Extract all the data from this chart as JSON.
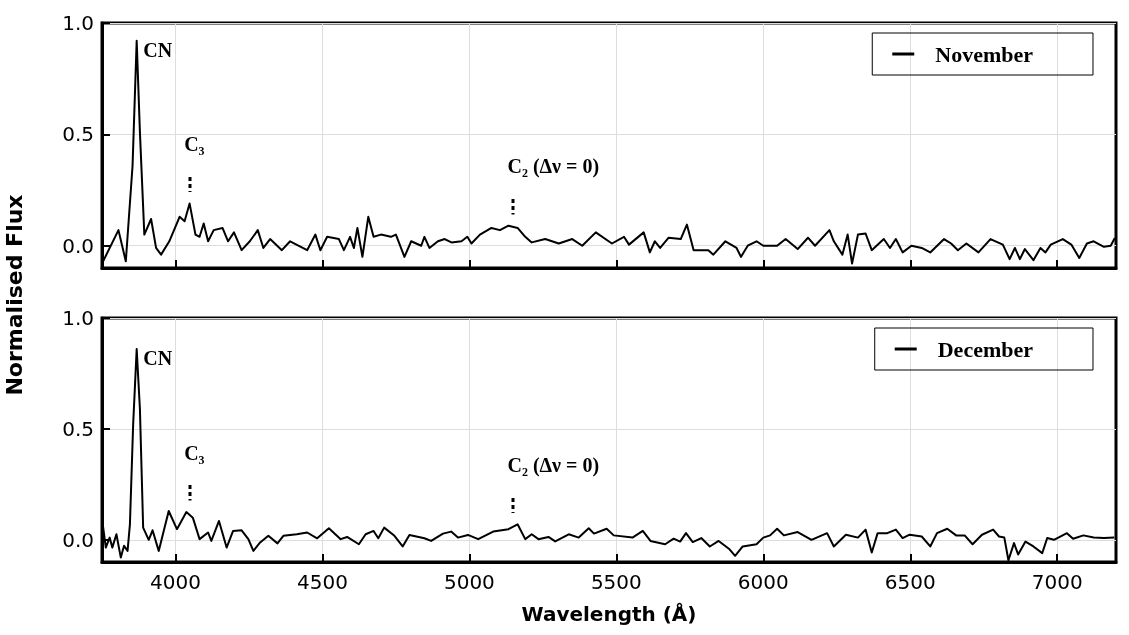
{
  "chart_data": [
    {
      "type": "line",
      "ylabel": "Normalised Flux",
      "xlim": [
        3750,
        7200
      ],
      "xticks": [
        4000,
        4500,
        5000,
        5500,
        6000,
        6500,
        7000
      ],
      "ylim": [
        -0.1,
        1.0
      ],
      "yticks": [
        {
          "value": 0,
          "label": "0.0"
        },
        {
          "value": 0.5,
          "label": "0.5"
        },
        {
          "value": 1,
          "label": "1.0"
        }
      ],
      "tick_labels": "y",
      "grid": true,
      "legend": "top right",
      "marker": "none",
      "line_style": "solid",
      "annotations": [
        {
          "text": "CN",
          "x": 3870,
          "y": 0.92
        },
        {
          "text": "C₃",
          "x": 4050,
          "y": 0.19
        },
        {
          "text": "C₂ (Δν = 0)",
          "x": 5150,
          "y": 0.09
        }
      ],
      "series": [
        {
          "name": "November",
          "color": "#000000",
          "x": [
            3750,
            3770,
            3806,
            3817,
            3831,
            3842,
            3854,
            3868,
            3879,
            3894,
            3917,
            3934,
            3951,
            3966,
            3979,
            4014,
            4031,
            4048,
            4068,
            4082,
            4096,
            4111,
            4130,
            4160,
            4179,
            4199,
            4225,
            4253,
            4280,
            4299,
            4322,
            4362,
            4390,
            4448,
            4476,
            4493,
            4516,
            4556,
            4573,
            4594,
            4607,
            4619,
            4636,
            4656,
            4674,
            4699,
            4733,
            4750,
            4779,
            4802,
            4836,
            4847,
            4864,
            4893,
            4916,
            4939,
            4973,
            4993,
            5007,
            5036,
            5075,
            5104,
            5133,
            5164,
            5190,
            5212,
            5258,
            5304,
            5350,
            5384,
            5430,
            5485,
            5526,
            5543,
            5593,
            5614,
            5631,
            5649,
            5678,
            5719,
            5740,
            5763,
            5813,
            5830,
            5871,
            5892,
            5909,
            5924,
            5947,
            5977,
            6000,
            6047,
            6076,
            6117,
            6152,
            6176,
            6225,
            6240,
            6269,
            6287,
            6302,
            6322,
            6348,
            6369,
            6410,
            6431,
            6451,
            6474,
            6504,
            6539,
            6568,
            6615,
            6639,
            6662,
            6691,
            6732,
            6773,
            6815,
            6838,
            6856,
            6873,
            6890,
            6919,
            6943,
            6960,
            6978,
            7019,
            7048,
            7075,
            7101,
            7124,
            7159,
            7182,
            7196
          ],
          "values": [
            -0.08,
            null,
            0.07,
            null,
            -0.07,
            null,
            0.36,
            0.92,
            0.51,
            0.05,
            0.12,
            -0.01,
            -0.04,
            null,
            0.02,
            0.13,
            0.11,
            0.19,
            0.05,
            0.04,
            0.1,
            0.02,
            0.07,
            0.08,
            0.02,
            0.06,
            -0.02,
            0.02,
            0.07,
            -0.01,
            0.03,
            -0.02,
            0.02,
            -0.02,
            0.05,
            -0.02,
            0.04,
            0.03,
            -0.02,
            0.04,
            -0.01,
            0.08,
            -0.05,
            0.13,
            0.04,
            0.05,
            0.04,
            0.05,
            -0.05,
            0.02,
            0,
            0.04,
            -0.01,
            0.02,
            0.03,
            0.015,
            0.02,
            0.04,
            0.01,
            0.05,
            0.08,
            0.07,
            0.09,
            0.08,
            0.04,
            0.015,
            0.03,
            0.01,
            0.03,
            0,
            0.06,
            0.01,
            0.04,
            0.005,
            0.06,
            -0.03,
            0.02,
            -0.01,
            0.036,
            0.03,
            0.095,
            -0.02,
            -0.02,
            -0.04,
            0.02,
            null,
            -0.01,
            -0.05,
            0,
            0.02,
            0,
            0,
            0.03,
            -0.015,
            0.036,
            0,
            0.07,
            0.02,
            -0.04,
            0.05,
            -0.08,
            0.05,
            0.055,
            -0.02,
            0.03,
            -0.01,
            0.03,
            -0.03,
            0,
            -0.01,
            -0.03,
            0.03,
            0.01,
            -0.02,
            0.01,
            -0.03,
            0.03,
            0.005,
            -0.06,
            -0.01,
            -0.06,
            -0.015,
            -0.065,
            -0.01,
            -0.03,
            0.005,
            0.03,
            0.005,
            -0.055,
            0.01,
            0.02,
            -0.005,
            0,
            0.035
          ]
        }
      ]
    },
    {
      "type": "line",
      "xlabel": "Wavelength (Å)",
      "xlim": [
        3750,
        7200
      ],
      "xticks": [
        4000,
        4500,
        5000,
        5500,
        6000,
        6500,
        7000
      ],
      "ylim": [
        -0.1,
        1.0
      ],
      "yticks": [
        {
          "value": 0,
          "label": "0.0"
        },
        {
          "value": 0.5,
          "label": "0.5"
        },
        {
          "value": 1,
          "label": "1.0"
        }
      ],
      "grid": true,
      "legend": "top right",
      "marker": "none",
      "line_style": "solid",
      "annotations": [
        {
          "text": "CN",
          "x": 3870,
          "y": 0.86
        },
        {
          "text": "C₃",
          "x": 4050,
          "y": 0.125
        },
        {
          "text": "C₂ (Δν = 0)",
          "x": 5150,
          "y": 0.07
        }
      ],
      "series": [
        {
          "name": "December",
          "color": "#000000",
          "x": [
            3751,
            3763,
            3776,
            3785,
            3799,
            3814,
            3825,
            3837,
            3845,
            3856,
            3868,
            3879,
            3890,
            3909,
            3922,
            3943,
            3977,
            4005,
            4037,
            4059,
            4082,
            4111,
            4122,
            4148,
            4174,
            4196,
            4225,
            4248,
            4265,
            4288,
            4316,
            4347,
            4367,
            4413,
            4448,
            4482,
            4522,
            4562,
            4584,
            4624,
            4647,
            4674,
            4690,
            4710,
            4745,
            4773,
            4796,
            4847,
            4870,
            4910,
            4938,
            4961,
            4995,
            5030,
            5081,
            5133,
            5164,
            5190,
            5212,
            5235,
            5269,
            5292,
            5338,
            5372,
            5406,
            5424,
            5467,
            5491,
            5555,
            5590,
            5616,
            5666,
            5695,
            5717,
            5737,
            5760,
            5789,
            5818,
            5848,
            5883,
            5904,
            5930,
            5977,
            6000,
            6023,
            6047,
            6070,
            6117,
            6164,
            6217,
            6240,
            6281,
            6322,
            6348,
            6369,
            6389,
            6422,
            6451,
            6474,
            6498,
            6539,
            6568,
            6591,
            6626,
            6656,
            6685,
            6712,
            6744,
            6782,
            6802,
            6820,
            6834,
            6853,
            6867,
            6892,
            6919,
            6949,
            6966,
            6989,
            7033,
            7054,
            7089,
            7124,
            7159,
            7194
          ],
          "values": [
            0.085,
            -0.035,
            0.01,
            -0.035,
            0.025,
            -0.08,
            -0.027,
            -0.05,
            0.07,
            0.52,
            0.86,
            0.59,
            0.055,
            0,
            0.043,
            -0.05,
            0.13,
            0.048,
            0.125,
            0.1,
            0.003,
            0.033,
            -0.005,
            0.085,
            -0.035,
            0.04,
            0.043,
            0.003,
            -0.05,
            -0.012,
            0.018,
            -0.016,
            0.018,
            0.025,
            0.033,
            0.007,
            0.052,
            0.003,
            0.013,
            -0.02,
            0.025,
            0.04,
            0.007,
            0.055,
            0.018,
            -0.03,
            0.022,
            0.007,
            -0.005,
            0.028,
            0.037,
            0.01,
            0.022,
            0.003,
            0.037,
            0.048,
            0.07,
            0.003,
            0.025,
            0.003,
            0.013,
            -0.007,
            0.025,
            0.01,
            0.052,
            0.028,
            0.05,
            0.02,
            0.01,
            0.04,
            -0.005,
            -0.02,
            0.005,
            -0.008,
            0.03,
            -0.01,
            0.008,
            -0.03,
            -0.005,
            -0.04,
            -0.072,
            -0.03,
            -0.02,
            0.01,
            0.02,
            0.05,
            0.02,
            0.035,
            0,
            0.03,
            -0.03,
            0.023,
            0.01,
            0.046,
            -0.057,
            0.03,
            0.03,
            0.046,
            0.008,
            0.023,
            0.015,
            -0.03,
            0.03,
            0.05,
            0.02,
            0.02,
            -0.02,
            0.023,
            0.046,
            0.015,
            0.01,
            -0.092,
            -0.015,
            -0.066,
            -0.008,
            -0.03,
            -0.06,
            0.008,
            0,
            0.03,
            0.005,
            0.02,
            0.01,
            0.008,
            0.01
          ]
        }
      ]
    }
  ]
}
